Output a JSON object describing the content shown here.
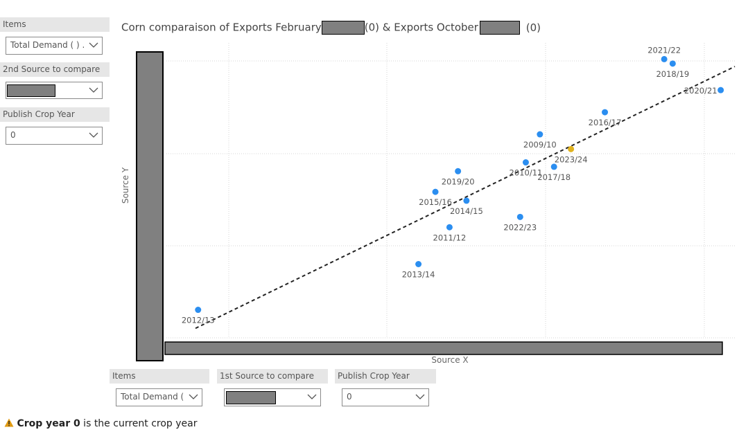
{
  "left_slicers": [
    {
      "header": "Items",
      "value": "Total Demand ( ) ..."
    },
    {
      "header": "2nd Source to compare",
      "value": ""
    },
    {
      "header": "Publish Crop Year",
      "value": "0"
    }
  ],
  "bottom_slicers": [
    {
      "header": "Items",
      "value": "Total Demand (..."
    },
    {
      "header": "1st Source to compare",
      "value": ""
    },
    {
      "header": "Publish Crop Year",
      "value": "0"
    }
  ],
  "title": {
    "part1": "Corn comparaison of Exports February",
    "part2": "(0) & Exports October",
    "part3": "(0)"
  },
  "footnote": {
    "bold": "Crop year 0",
    "rest": " is the current crop year"
  },
  "colors": {
    "point": "#2b8ef0",
    "highlight": "#e0b21e",
    "trend": "#222222",
    "redact": "#808080",
    "warning": "#e09a12"
  },
  "chart_data": {
    "type": "scatter",
    "xlabel": "Source X",
    "ylabel": "Source Y",
    "xlim": [
      0,
      100
    ],
    "ylim": [
      0,
      100
    ],
    "grid": true,
    "trendline": {
      "style": "dashed",
      "from": [
        0,
        3
      ],
      "to": [
        100,
        92
      ]
    },
    "points": [
      {
        "label": "2012/13",
        "x": 5,
        "y": 9.5,
        "highlight": false
      },
      {
        "label": "2013/14",
        "x": 44,
        "y": 25,
        "highlight": false
      },
      {
        "label": "2011/12",
        "x": 49.5,
        "y": 37.5,
        "highlight": false
      },
      {
        "label": "2015/16",
        "x": 47,
        "y": 49.5,
        "highlight": false
      },
      {
        "label": "2014/15",
        "x": 52.5,
        "y": 46.5,
        "highlight": false
      },
      {
        "label": "2019/20",
        "x": 51,
        "y": 56.5,
        "highlight": false
      },
      {
        "label": "2022/23",
        "x": 62,
        "y": 41,
        "highlight": false
      },
      {
        "label": "2010/11",
        "x": 63,
        "y": 59.5,
        "highlight": false
      },
      {
        "label": "2009/10",
        "x": 65.5,
        "y": 69,
        "highlight": false
      },
      {
        "label": "2017/18",
        "x": 68,
        "y": 58,
        "highlight": false
      },
      {
        "label": "2023/24",
        "x": 71,
        "y": 64,
        "highlight": true
      },
      {
        "label": "2016/17",
        "x": 77,
        "y": 76.5,
        "highlight": false
      },
      {
        "label": "2021/22",
        "x": 87.5,
        "y": 94.5,
        "highlight": false
      },
      {
        "label": "2018/19",
        "x": 89,
        "y": 93,
        "highlight": false
      },
      {
        "label": "2020/21",
        "x": 97.5,
        "y": 84,
        "highlight": false
      }
    ]
  }
}
